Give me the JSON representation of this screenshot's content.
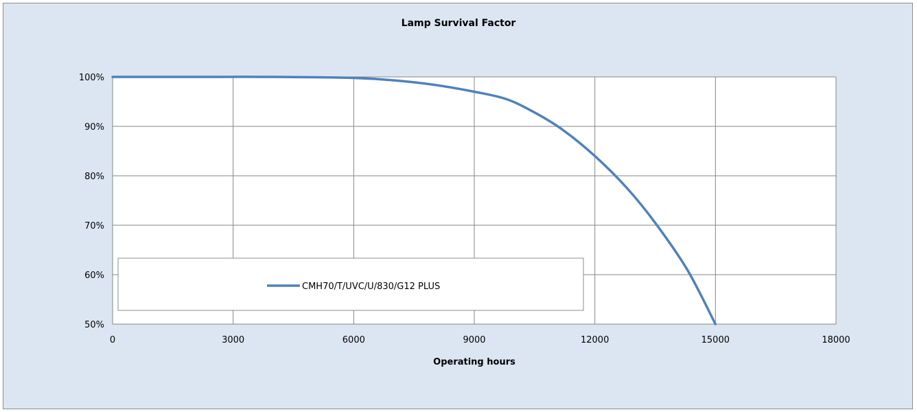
{
  "chart_data": {
    "type": "line",
    "title": "Lamp Survival Factor",
    "xlabel": "Operating hours",
    "ylabel": "",
    "xlim": [
      0,
      18000
    ],
    "ylim": [
      50,
      100
    ],
    "x_ticks": [
      "0",
      "3000",
      "6000",
      "9000",
      "12000",
      "15000",
      "18000"
    ],
    "y_ticks": [
      "50%",
      "60%",
      "70%",
      "80%",
      "90%",
      "100%"
    ],
    "grid": true,
    "legend_position": "bottom-left",
    "series": [
      {
        "name": "CMH70/T/UVC/U/830/G12 PLUS",
        "color": "#4f81bd",
        "x": [
          0,
          2000,
          4000,
          6000,
          7000,
          8000,
          9000,
          9800,
          10500,
          11200,
          12000,
          12800,
          13500,
          14300,
          15000
        ],
        "y": [
          100,
          100,
          100,
          99.8,
          99.3,
          98.4,
          97,
          95.5,
          92.8,
          89.3,
          84,
          77.5,
          70.5,
          61,
          50
        ]
      }
    ]
  }
}
